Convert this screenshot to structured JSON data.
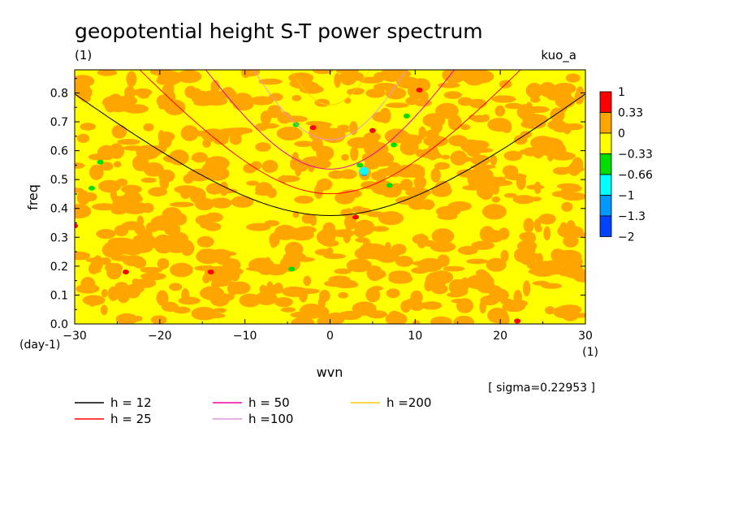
{
  "chart_data": {
    "type": "heatmap",
    "title": "geopotential height S-T power spectrum",
    "subtitle": "(1)",
    "dataset": "kuo_a",
    "xlabel": "wvn",
    "xunit": "(1)",
    "ylabel": "freq",
    "yunit": "(day-1)",
    "xlim": [
      -30,
      30
    ],
    "ylim": [
      0,
      0.88
    ],
    "xticks": [
      -30,
      -20,
      -10,
      0,
      10,
      20,
      30
    ],
    "xtick_labels": [
      "−30",
      "−20",
      "−10",
      "0",
      "10",
      "20",
      "30"
    ],
    "yticks": [
      0,
      0.1,
      0.2,
      0.3,
      0.4,
      0.5,
      0.6,
      0.7,
      0.8
    ],
    "ytick_labels": [
      "0.0",
      "0.1",
      "0.2",
      "0.3",
      "0.4",
      "0.5",
      "0.6",
      "0.7",
      "0.8"
    ],
    "sigma_label": "[ sigma=0.22953 ]",
    "colorbar": {
      "levels": [
        "1",
        "0.33",
        "0",
        "−0.33",
        "−0.66",
        "−1",
        "−1.3",
        "−2"
      ],
      "colors": [
        "#ff0000",
        "#ffa500",
        "#ffff00",
        "#00dd00",
        "#00ffff",
        "#0099ff",
        "#0044ff"
      ]
    },
    "field_colors": {
      "background": "#ffff00",
      "patch": "#ffa500"
    },
    "series": [
      {
        "name": "h = 12",
        "label": "h = 12",
        "h": 12,
        "color": "#000000"
      },
      {
        "name": "h = 25",
        "label": "h = 25",
        "h": 25,
        "color": "#ff0000"
      },
      {
        "name": "h = 50",
        "label": "h = 50",
        "h": 50,
        "color": "#ee00aa"
      },
      {
        "name": "h =100",
        "label": "h =100",
        "h": 100,
        "color": "#dd99dd"
      },
      {
        "name": "h =200",
        "label": "h =200",
        "h": 200,
        "color": "#ffcc00"
      }
    ],
    "anomalies": [
      {
        "x": 4,
        "y": 0.52,
        "level": "-1",
        "color": "#0099ff"
      },
      {
        "x": 4,
        "y": 0.53,
        "level": "-0.66",
        "color": "#00ffff"
      },
      {
        "x": 3.5,
        "y": 0.55,
        "level": "-0.33",
        "color": "#00dd00"
      },
      {
        "x": 9,
        "y": 0.72,
        "level": "-0.33",
        "color": "#00dd00"
      },
      {
        "x": 7.5,
        "y": 0.62,
        "level": "-0.33",
        "color": "#00dd00"
      },
      {
        "x": 7,
        "y": 0.48,
        "level": "-0.33",
        "color": "#00dd00"
      },
      {
        "x": -4.5,
        "y": 0.19,
        "level": "-0.33",
        "color": "#00dd00"
      },
      {
        "x": -4,
        "y": 0.69,
        "level": "-0.33",
        "color": "#00dd00"
      },
      {
        "x": -28,
        "y": 0.47,
        "level": "-0.33",
        "color": "#00dd00"
      },
      {
        "x": -27,
        "y": 0.56,
        "level": "-0.33",
        "color": "#00dd00"
      },
      {
        "x": -2,
        "y": 0.68,
        "level": "1",
        "color": "#ff0000"
      },
      {
        "x": 5,
        "y": 0.67,
        "level": "1",
        "color": "#ff0000"
      },
      {
        "x": 3,
        "y": 0.37,
        "level": "1",
        "color": "#ff0000"
      },
      {
        "x": -30,
        "y": 0.34,
        "level": "1",
        "color": "#ff0000"
      },
      {
        "x": 10.5,
        "y": 0.81,
        "level": "1",
        "color": "#ff0000"
      },
      {
        "x": -24,
        "y": 0.18,
        "level": "1",
        "color": "#ff0000"
      },
      {
        "x": -14,
        "y": 0.18,
        "level": "1",
        "color": "#ff0000"
      },
      {
        "x": 22,
        "y": 0.01,
        "level": "1",
        "color": "#ff0000"
      }
    ]
  }
}
